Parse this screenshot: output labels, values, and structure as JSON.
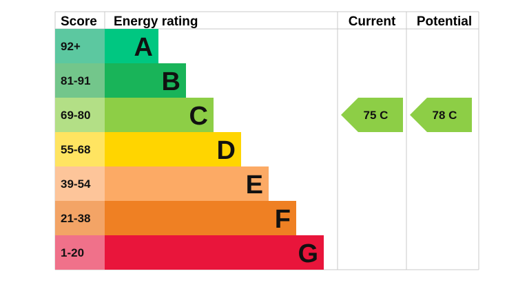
{
  "chart_data": {
    "type": "bar",
    "headers": {
      "score": "Score",
      "rating": "Energy rating",
      "current": "Current",
      "potential": "Potential"
    },
    "bands": [
      {
        "score": "92+",
        "letter": "A",
        "color": "#00c781",
        "score_bg": "#5cc8a0"
      },
      {
        "score": "81-91",
        "letter": "B",
        "color": "#19b459",
        "score_bg": "#73c68b"
      },
      {
        "score": "69-80",
        "letter": "C",
        "color": "#8dce46",
        "score_bg": "#b3df86"
      },
      {
        "score": "55-68",
        "letter": "D",
        "color": "#ffd500",
        "score_bg": "#ffe461"
      },
      {
        "score": "39-54",
        "letter": "E",
        "color": "#fcaa65",
        "score_bg": "#fdc59a"
      },
      {
        "score": "21-38",
        "letter": "F",
        "color": "#ef8023",
        "score_bg": "#f3a466"
      },
      {
        "score": "1-20",
        "letter": "G",
        "color": "#e9153b",
        "score_bg": "#f0718a"
      }
    ],
    "current": {
      "value": 75,
      "letter": "C",
      "label": "75  C",
      "color": "#8dce46"
    },
    "potential": {
      "value": 78,
      "letter": "C",
      "label": "78  C",
      "color": "#8dce46"
    }
  }
}
